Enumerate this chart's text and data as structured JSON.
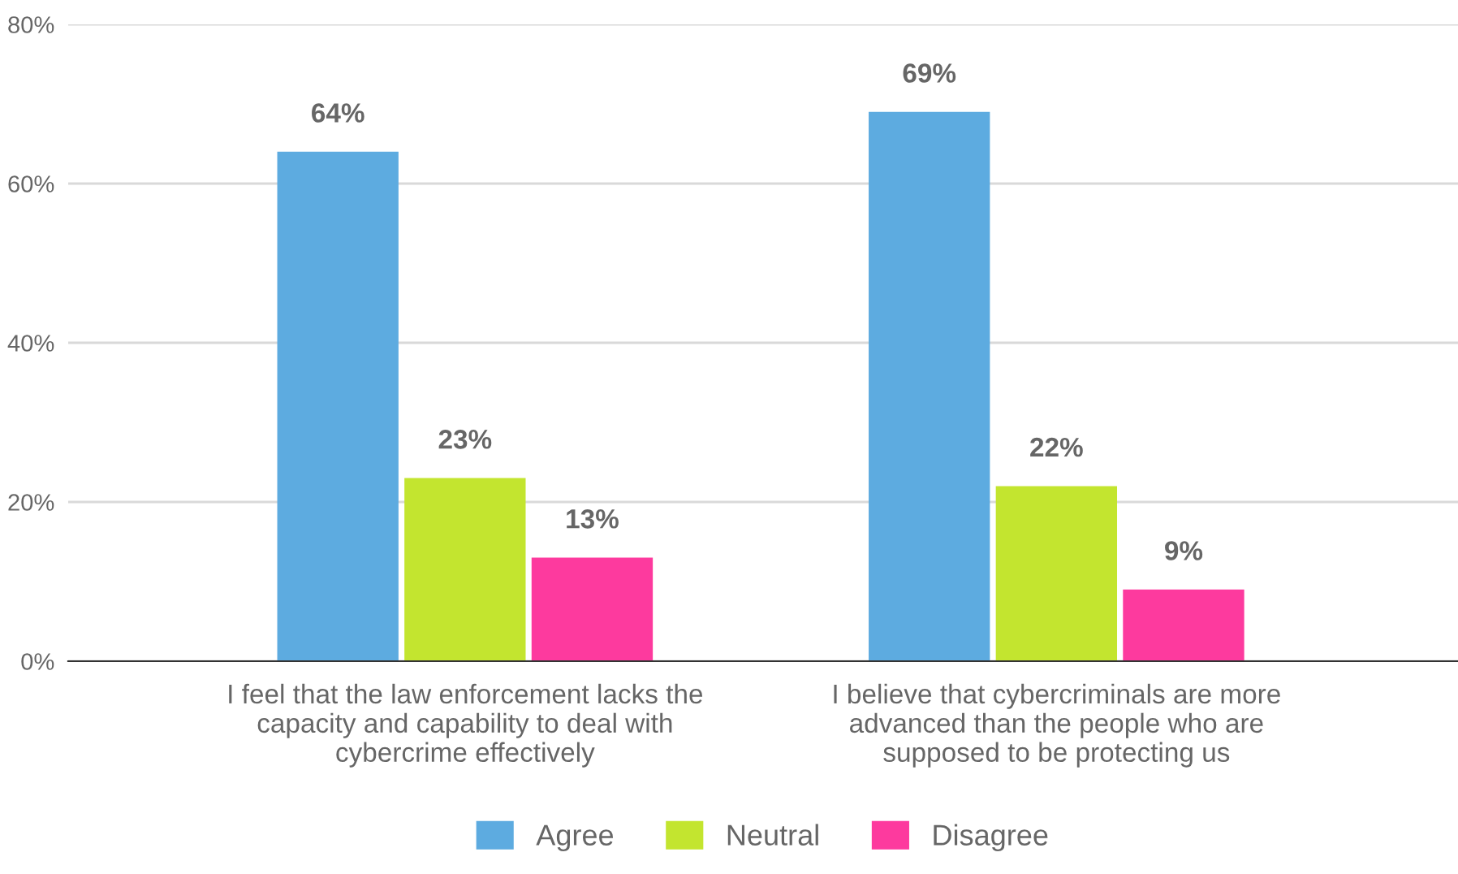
{
  "chart_data": {
    "type": "bar",
    "categories": [
      "I feel that the law enforcement lacks the\ncapacity and capability to deal with\ncybercrime effectively",
      "I believe that cybercriminals are more\nadvanced than the people who are\nsupposed to be protecting us"
    ],
    "series": [
      {
        "name": "Agree",
        "color": "#5dabe0",
        "values": [
          64,
          69
        ],
        "value_labels": [
          "64%",
          "69%"
        ]
      },
      {
        "name": "Neutral",
        "color": "#c3e52f",
        "values": [
          23,
          22
        ],
        "value_labels": [
          "23%",
          "22%"
        ]
      },
      {
        "name": "Disagree",
        "color": "#fd3a9e",
        "values": [
          13,
          9
        ],
        "value_labels": [
          "13%",
          "9%"
        ]
      }
    ],
    "ylim": [
      0,
      80
    ],
    "yticks": [
      {
        "value": 0,
        "label": "0%"
      },
      {
        "value": 20,
        "label": "20%"
      },
      {
        "value": 40,
        "label": "40%"
      },
      {
        "value": 60,
        "label": "60%"
      },
      {
        "value": 80,
        "label": "80%"
      }
    ],
    "grid": "y",
    "legend": "bottom"
  }
}
